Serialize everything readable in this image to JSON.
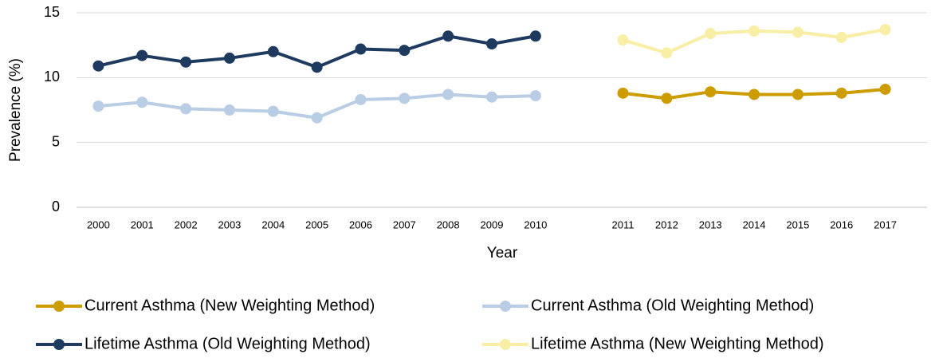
{
  "chart_data": {
    "type": "line",
    "x_label": "Year",
    "y_label": "Prevalence (%)",
    "categories": [
      "2000",
      "2001",
      "2002",
      "2003",
      "2004",
      "2005",
      "2006",
      "2007",
      "2008",
      "2009",
      "2010",
      null,
      "2011",
      "2012",
      "2013",
      "2014",
      "2015",
      "2016",
      "2017"
    ],
    "series": [
      {
        "name": "Current Asthma (New Weighting Method)",
        "color": "#cc9c00",
        "values": [
          null,
          null,
          null,
          null,
          null,
          null,
          null,
          null,
          null,
          null,
          null,
          null,
          8.8,
          8.4,
          8.9,
          8.7,
          8.7,
          8.8,
          9.1
        ]
      },
      {
        "name": "Current Asthma (Old Weighting Method)",
        "color": "#b9cde5",
        "values": [
          7.8,
          8.1,
          7.6,
          7.5,
          7.4,
          6.9,
          8.3,
          8.4,
          8.7,
          8.5,
          8.6,
          null,
          null,
          null,
          null,
          null,
          null,
          null,
          null
        ]
      },
      {
        "name": "Lifetime Asthma (Old Weighting Method)",
        "color": "#1f3a5f",
        "values": [
          10.9,
          11.7,
          11.2,
          11.5,
          12.0,
          10.8,
          12.2,
          12.1,
          13.2,
          12.6,
          13.2,
          null,
          null,
          null,
          null,
          null,
          null,
          null,
          null
        ]
      },
      {
        "name": "Lifetime Asthma (New Weighting Method)",
        "color": "#f8eea5",
        "values": [
          null,
          null,
          null,
          null,
          null,
          null,
          null,
          null,
          null,
          null,
          null,
          null,
          12.9,
          11.9,
          13.4,
          13.6,
          13.5,
          13.1,
          13.7
        ]
      }
    ],
    "ylim": [
      0,
      15
    ],
    "yticks": [
      0,
      5,
      10,
      15
    ],
    "grid": true
  }
}
